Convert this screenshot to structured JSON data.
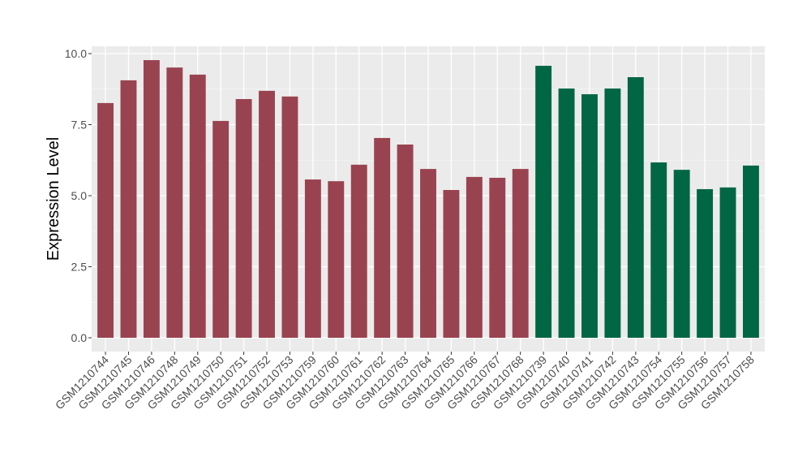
{
  "chart_data": {
    "type": "bar",
    "title": "",
    "xlabel": "",
    "ylabel": "Expression Level",
    "ylim": [
      0,
      10.3
    ],
    "yticks": [
      "0.0",
      "2.5",
      "5.0",
      "7.5",
      "10.0"
    ],
    "grid": true,
    "legend": "none",
    "categories": [
      "GSM1210744",
      "GSM1210745",
      "GSM1210746",
      "GSM1210748",
      "GSM1210749",
      "GSM1210750",
      "GSM1210751",
      "GSM1210752",
      "GSM1210753",
      "GSM1210759",
      "GSM1210760",
      "GSM1210761",
      "GSM1210762",
      "GSM1210763",
      "GSM1210764",
      "GSM1210765",
      "GSM1210766",
      "GSM1210767",
      "GSM1210768",
      "GSM1210739",
      "GSM1210740",
      "GSM1210741",
      "GSM1210742",
      "GSM1210743",
      "GSM1210754",
      "GSM1210755",
      "GSM1210756",
      "GSM1210757",
      "GSM1210758"
    ],
    "values": [
      8.26,
      9.06,
      9.77,
      9.51,
      9.26,
      7.63,
      8.4,
      8.69,
      8.49,
      5.57,
      5.51,
      6.09,
      7.03,
      6.8,
      5.94,
      5.2,
      5.66,
      5.63,
      5.94,
      9.57,
      8.77,
      8.57,
      8.77,
      9.17,
      6.17,
      5.91,
      5.23,
      5.29,
      6.06
    ],
    "groups": [
      0,
      0,
      0,
      0,
      0,
      0,
      0,
      0,
      0,
      0,
      0,
      0,
      0,
      0,
      0,
      0,
      0,
      0,
      0,
      1,
      1,
      1,
      1,
      1,
      1,
      1,
      1,
      1,
      1
    ],
    "group_colors": [
      "#9a4350",
      "#006644"
    ],
    "panel_background": "#ebebeb"
  }
}
